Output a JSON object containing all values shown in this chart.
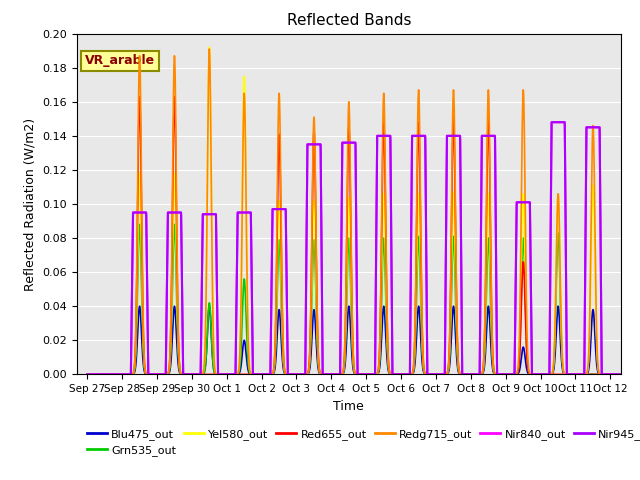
{
  "title": "Reflected Bands",
  "xlabel": "Time",
  "ylabel": "Reflected Radiation (W/m2)",
  "annotation_text": "VR_arable",
  "annotation_color": "#8B0000",
  "annotation_bg": "#FFFF99",
  "annotation_border": "#8B8B00",
  "ylim": [
    0.0,
    0.2
  ],
  "yticks": [
    0.0,
    0.02,
    0.04,
    0.06,
    0.08,
    0.1,
    0.12,
    0.14,
    0.16,
    0.18,
    0.2
  ],
  "bg_color": "#E8E8E8",
  "grid_color": "#FFFFFF",
  "lines": {
    "Blu475_out": {
      "color": "#0000CC",
      "lw": 1.2,
      "zorder": 3
    },
    "Grn535_out": {
      "color": "#00CC00",
      "lw": 1.2,
      "zorder": 4
    },
    "Yel580_out": {
      "color": "#FFFF00",
      "lw": 1.2,
      "zorder": 5
    },
    "Red655_out": {
      "color": "#FF0000",
      "lw": 1.2,
      "zorder": 6
    },
    "Redg715_out": {
      "color": "#FF8800",
      "lw": 1.2,
      "zorder": 7
    },
    "Nir840_out": {
      "color": "#FF00FF",
      "lw": 1.5,
      "zorder": 8
    },
    "Nir945_out": {
      "color": "#AA00FF",
      "lw": 1.5,
      "zorder": 9
    }
  },
  "xtick_labels": [
    "Sep 27",
    "Sep 28",
    "Sep 29",
    "Sep 30",
    "Oct 1",
    "Oct 2",
    "Oct 3",
    "Oct 4",
    "Oct 5",
    "Oct 6",
    "Oct 7",
    "Oct 8",
    "Oct 9",
    "Oct 10",
    "Oct 11",
    "Oct 12"
  ],
  "peak_data": {
    "Blu475_out": [
      0.0,
      0.04,
      0.04,
      0.04,
      0.02,
      0.038,
      0.038,
      0.04,
      0.04,
      0.04,
      0.04,
      0.04,
      0.016,
      0.04,
      0.038,
      0.0
    ],
    "Grn535_out": [
      0.0,
      0.088,
      0.088,
      0.042,
      0.056,
      0.079,
      0.079,
      0.08,
      0.08,
      0.081,
      0.081,
      0.08,
      0.08,
      0.083,
      0.0,
      0.0
    ],
    "Yel580_out": [
      0.0,
      0.118,
      0.118,
      0.192,
      0.175,
      0.102,
      0.102,
      0.104,
      0.106,
      0.106,
      0.107,
      0.106,
      0.106,
      0.106,
      0.111,
      0.0
    ],
    "Red655_out": [
      0.0,
      0.163,
      0.163,
      0.0,
      0.0,
      0.141,
      0.143,
      0.145,
      0.148,
      0.148,
      0.15,
      0.15,
      0.066,
      0.0,
      0.0,
      0.0
    ],
    "Redg715_out": [
      0.0,
      0.187,
      0.187,
      0.191,
      0.165,
      0.165,
      0.151,
      0.16,
      0.165,
      0.167,
      0.167,
      0.167,
      0.167,
      0.106,
      0.146,
      0.0
    ],
    "Nir840_out": [
      0.0,
      0.095,
      0.095,
      0.094,
      0.095,
      0.097,
      0.135,
      0.136,
      0.14,
      0.14,
      0.14,
      0.14,
      0.101,
      0.148,
      0.145,
      0.0
    ],
    "Nir945_out": [
      0.0,
      0.095,
      0.095,
      0.094,
      0.095,
      0.097,
      0.135,
      0.136,
      0.14,
      0.14,
      0.14,
      0.14,
      0.101,
      0.148,
      0.145,
      0.0
    ]
  },
  "narrow_sigma": 0.055,
  "wide_sigma": 0.2,
  "day_start": 0.25,
  "day_end": 0.75
}
